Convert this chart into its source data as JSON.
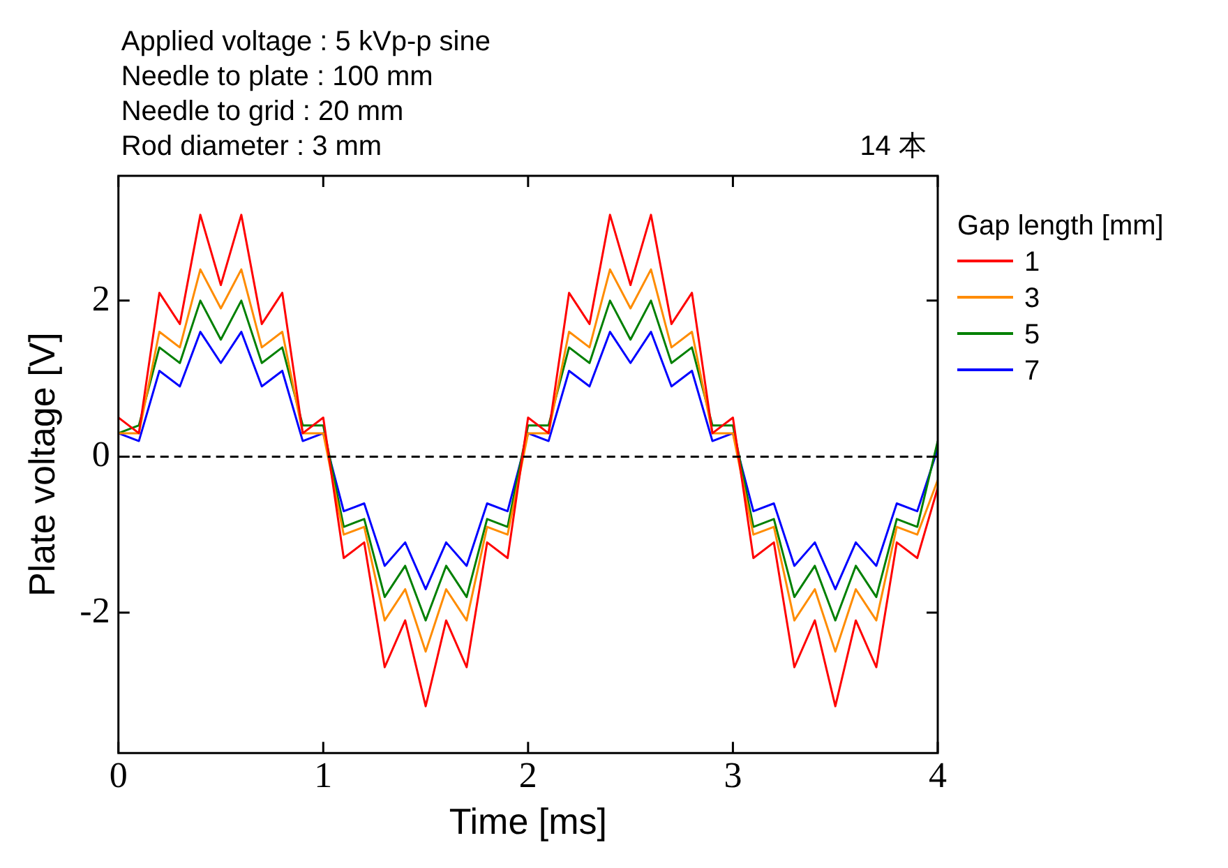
{
  "chart_data": {
    "type": "line",
    "xlabel": "Time [ms]",
    "ylabel": "Plate voltage [V]",
    "legend_title": "Gap length [mm]",
    "annotations": [
      "Applied voltage : 5 kVp-p sine",
      "Needle to plate : 100 mm",
      "Needle to grid : 20 mm",
      "Rod diameter : 3 mm",
      "14 本"
    ],
    "x": [
      0,
      0.1,
      0.2,
      0.3,
      0.4,
      0.5,
      0.6,
      0.7,
      0.8,
      0.9,
      1,
      1.1,
      1.2,
      1.3,
      1.4,
      1.5,
      1.6,
      1.7,
      1.8,
      1.9,
      2,
      2.1,
      2.2,
      2.3,
      2.4,
      2.5,
      2.6,
      2.7,
      2.8,
      2.9,
      3,
      3.1,
      3.2,
      3.3,
      3.4,
      3.5,
      3.6,
      3.7,
      3.8,
      3.9,
      4
    ],
    "series": [
      {
        "name": "1",
        "color": "#ff0000",
        "values": [
          0.5,
          0.3,
          2.1,
          1.7,
          3.1,
          2.2,
          3.1,
          1.7,
          2.1,
          0.3,
          0.5,
          -1.3,
          -1.1,
          -2.7,
          -2.1,
          -3.2,
          -2.1,
          -2.7,
          -1.1,
          -1.3,
          0.5,
          0.3,
          2.1,
          1.7,
          3.1,
          2.2,
          3.1,
          1.7,
          2.1,
          0.3,
          0.5,
          -1.3,
          -1.1,
          -2.7,
          -2.1,
          -3.2,
          -2.1,
          -2.7,
          -1.1,
          -1.3,
          -0.4
        ]
      },
      {
        "name": "3",
        "color": "#ff8c00",
        "values": [
          0.3,
          0.3,
          1.6,
          1.4,
          2.4,
          1.9,
          2.4,
          1.4,
          1.6,
          0.3,
          0.3,
          -1.0,
          -0.9,
          -2.1,
          -1.7,
          -2.5,
          -1.7,
          -2.1,
          -0.9,
          -1.0,
          0.3,
          0.3,
          1.6,
          1.4,
          2.4,
          1.9,
          2.4,
          1.4,
          1.6,
          0.3,
          0.3,
          -1.0,
          -0.9,
          -2.1,
          -1.7,
          -2.5,
          -1.7,
          -2.1,
          -0.9,
          -1.0,
          -0.3
        ]
      },
      {
        "name": "5",
        "color": "#008000",
        "values": [
          0.3,
          0.4,
          1.4,
          1.2,
          2.0,
          1.5,
          2.0,
          1.2,
          1.4,
          0.4,
          0.4,
          -0.9,
          -0.8,
          -1.8,
          -1.4,
          -2.1,
          -1.4,
          -1.8,
          -0.8,
          -0.9,
          0.4,
          0.4,
          1.4,
          1.2,
          2.0,
          1.5,
          2.0,
          1.2,
          1.4,
          0.4,
          0.4,
          -0.9,
          -0.8,
          -1.8,
          -1.4,
          -2.1,
          -1.4,
          -1.8,
          -0.8,
          -0.9,
          0.2
        ]
      },
      {
        "name": "7",
        "color": "#0000ff",
        "values": [
          0.3,
          0.2,
          1.1,
          0.9,
          1.6,
          1.2,
          1.6,
          0.9,
          1.1,
          0.2,
          0.3,
          -0.7,
          -0.6,
          -1.4,
          -1.1,
          -1.7,
          -1.1,
          -1.4,
          -0.6,
          -0.7,
          0.3,
          0.2,
          1.1,
          0.9,
          1.6,
          1.2,
          1.6,
          0.9,
          1.1,
          0.2,
          0.3,
          -0.7,
          -0.6,
          -1.4,
          -1.1,
          -1.7,
          -1.1,
          -1.4,
          -0.6,
          -0.7,
          0.1
        ]
      }
    ],
    "xlim": [
      0,
      4
    ],
    "xticks": [
      0,
      1,
      2,
      3,
      4
    ],
    "ylim": [
      -3.8,
      3.6
    ],
    "yticks": [
      -2,
      0,
      2
    ],
    "ref_lines": [
      {
        "axis": "y",
        "value": 0,
        "color": "#000000",
        "line_style": "dashed"
      }
    ],
    "grid": false,
    "legend": "right",
    "marker": "none",
    "line_style": "solid"
  }
}
